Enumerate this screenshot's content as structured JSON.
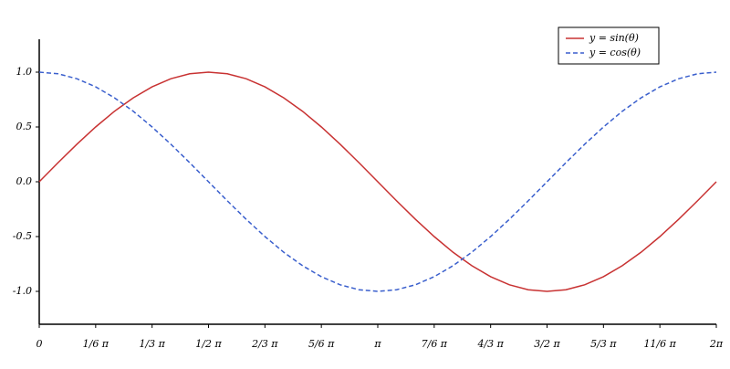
{
  "chart_data": {
    "type": "line",
    "x": [
      0,
      0.1745,
      0.3491,
      0.5236,
      0.6981,
      0.8727,
      1.0472,
      1.2217,
      1.3963,
      1.5708,
      1.7453,
      1.9199,
      2.0944,
      2.2689,
      2.4435,
      2.618,
      2.7925,
      2.9671,
      3.1416,
      3.3161,
      3.4907,
      3.6652,
      3.8397,
      4.0143,
      4.1888,
      4.3633,
      4.5379,
      4.7124,
      4.8869,
      5.0615,
      5.236,
      5.4105,
      5.5851,
      5.7596,
      5.9341,
      6.1087,
      6.2832
    ],
    "series": [
      {
        "name": "y = sin(θ)",
        "color": "#c83232",
        "dash": false,
        "values": [
          0,
          0.174,
          0.342,
          0.5,
          0.643,
          0.766,
          0.866,
          0.94,
          0.985,
          1,
          0.985,
          0.94,
          0.866,
          0.766,
          0.643,
          0.5,
          0.342,
          0.174,
          0,
          -0.174,
          -0.342,
          -0.5,
          -0.643,
          -0.766,
          -0.866,
          -0.94,
          -0.985,
          -1,
          -0.985,
          -0.94,
          -0.866,
          -0.766,
          -0.643,
          -0.5,
          -0.342,
          -0.174,
          0
        ]
      },
      {
        "name": "y = cos(θ)",
        "color": "#3a5fcd",
        "dash": true,
        "values": [
          1,
          0.985,
          0.94,
          0.866,
          0.766,
          0.643,
          0.5,
          0.342,
          0.174,
          0,
          -0.174,
          -0.342,
          -0.5,
          -0.643,
          -0.766,
          -0.866,
          -0.94,
          -0.985,
          -1,
          -0.985,
          -0.94,
          -0.866,
          -0.766,
          -0.643,
          -0.5,
          -0.342,
          -0.174,
          0,
          0.174,
          0.342,
          0.5,
          0.643,
          0.766,
          0.866,
          0.94,
          0.985,
          1
        ]
      }
    ],
    "xlim": [
      0,
      6.2832
    ],
    "xticks": [
      0,
      {
        "value": 0.5236,
        "label": "1/6 π"
      },
      {
        "value": 1.0472,
        "label": "1/3 π"
      },
      {
        "value": 1.5708,
        "label": "1/2 π"
      },
      {
        "value": 2.0944,
        "label": "2/3 π"
      },
      {
        "value": 2.618,
        "label": "5/6 π"
      },
      {
        "value": 3.1416,
        "label": "π"
      },
      {
        "value": 3.6652,
        "label": "7/6 π"
      },
      {
        "value": 4.1888,
        "label": "4/3 π"
      },
      {
        "value": 4.7124,
        "label": "3/2 π"
      },
      {
        "value": 5.236,
        "label": "5/3 π"
      },
      {
        "value": 5.7596,
        "label": "11/6 π"
      },
      {
        "value": 6.2832,
        "label": "2π"
      }
    ],
    "ylim": [
      -1.3,
      1.3
    ],
    "yticks": [
      {
        "value": -1,
        "label": "-1.0"
      },
      -0.5,
      {
        "value": 0,
        "label": "0.0"
      },
      0.5,
      {
        "value": 1,
        "label": "1.0"
      }
    ],
    "grid": false,
    "legend": "top-right"
  }
}
